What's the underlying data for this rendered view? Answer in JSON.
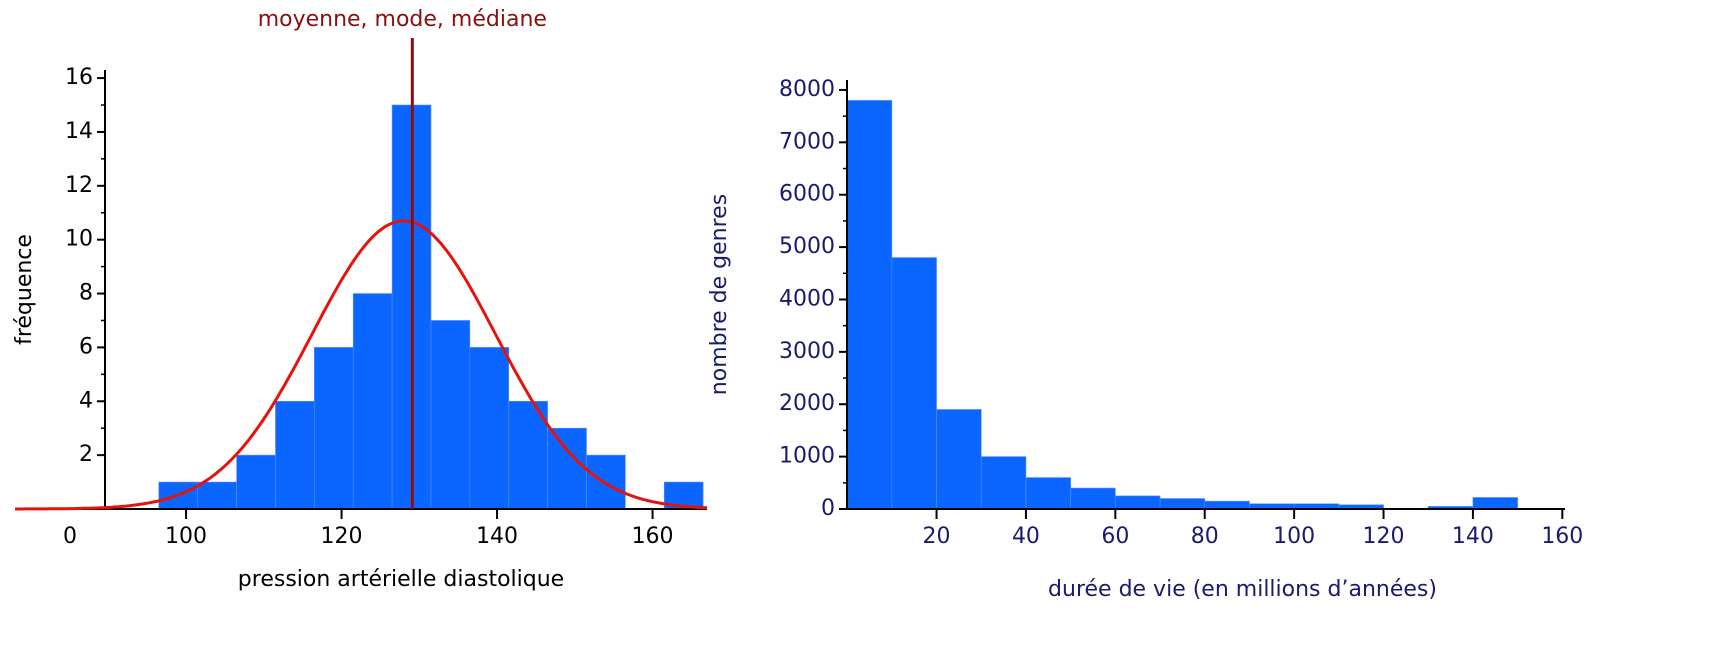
{
  "chart_data": [
    {
      "type": "histogram",
      "xlabel": "pression artérielle diastolique",
      "ylabel": "fréquence",
      "bins": [
        96.5,
        101.5,
        106.5,
        111.5,
        116.5,
        121.5,
        126.5,
        131.5,
        136.5,
        141.5,
        146.5,
        151.5,
        156.5,
        161.5,
        166.5
      ],
      "counts": [
        1,
        1,
        2,
        4,
        6,
        8,
        15,
        7,
        6,
        4,
        3,
        2,
        0,
        1
      ],
      "color": "#0a66ff",
      "xlim": [
        78,
        167
      ],
      "ylim": [
        0,
        16.3
      ],
      "xticks": [
        100,
        120,
        140,
        160
      ],
      "x_origin_label": "0",
      "yticks": [
        2,
        4,
        6,
        8,
        10,
        12,
        14,
        16
      ],
      "curve": {
        "mean": 128,
        "sd": 11.8,
        "peak": 10.7,
        "color": "#e8120c"
      },
      "vline": {
        "x": 129.1,
        "label": "moyenne, mode, médiane",
        "color": "#8b0f0f"
      },
      "text_color": "#000000"
    },
    {
      "type": "histogram",
      "xlabel": "durée de vie (en millions d’années)",
      "ylabel": "nombre de genres",
      "bins": [
        0,
        10,
        20,
        30,
        40,
        50,
        60,
        70,
        80,
        90,
        100,
        110,
        120,
        130,
        140,
        150
      ],
      "counts": [
        7800,
        4800,
        1900,
        1000,
        600,
        400,
        250,
        200,
        150,
        100,
        100,
        80,
        0,
        50,
        220
      ],
      "color": "#0a66ff",
      "xlim": [
        -1.6,
        160.6
      ],
      "ylim": [
        0,
        8190
      ],
      "xticks": [
        20,
        40,
        60,
        80,
        100,
        120,
        140,
        160
      ],
      "yticks": [
        0,
        1000,
        2000,
        3000,
        4000,
        5000,
        6000,
        7000,
        8000
      ],
      "text_color": "#1a1a6e"
    }
  ]
}
